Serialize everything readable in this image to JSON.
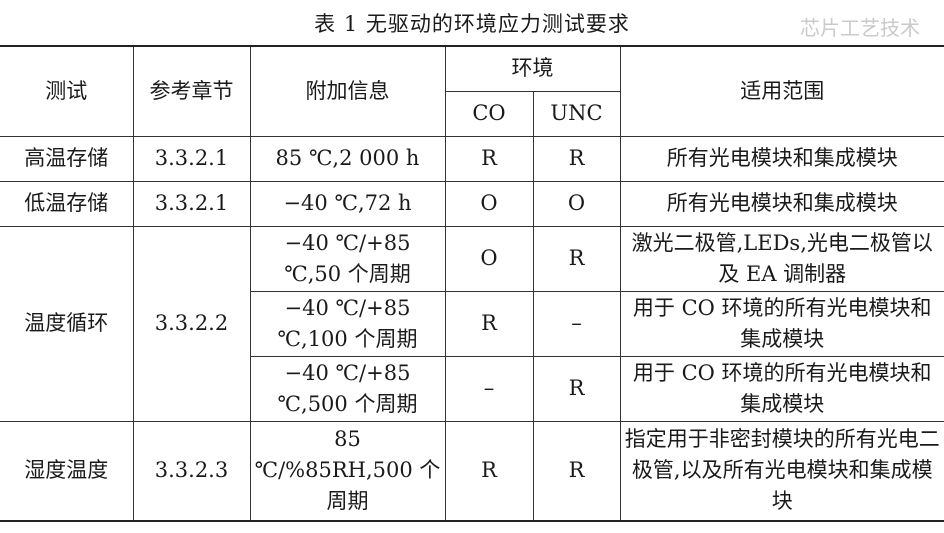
{
  "title": "表 1  无驱动的环境应力测试要求",
  "headers": {
    "test": "测试",
    "section": "参考章节",
    "info": "附加信息",
    "env": "环境",
    "co": "CO",
    "unc": "UNC",
    "scope": "适用范围"
  },
  "rows": [
    {
      "test": "高温存储",
      "section": "3.3.2.1",
      "info": "85 ℃,2 000 h",
      "co": "R",
      "unc": "R",
      "scope": "所有光电模块和集成模块"
    },
    {
      "test": "低温存储",
      "section": "3.3.2.1",
      "info": "−40 ℃,72 h",
      "co": "O",
      "unc": "O",
      "scope": "所有光电模块和集成模块"
    },
    {
      "test": "温度循环",
      "section": "3.3.2.2",
      "info": "−40 ℃/+85 ℃,50 个周期",
      "co": "O",
      "unc": "R",
      "scope": "激光二极管,LEDs,光电二极管以及 EA 调制器"
    },
    {
      "info": "−40 ℃/+85 ℃,100 个周期",
      "co": "R",
      "unc": "–",
      "scope": "用于 CO 环境的所有光电模块和集成模块"
    },
    {
      "info": "−40 ℃/+85 ℃,500 个周期",
      "co": "–",
      "unc": "R",
      "scope": "用于 CO 环境的所有光电模块和集成模块"
    },
    {
      "test": "湿度温度",
      "section": "3.3.2.3",
      "info": "85 ℃/%85RH,500 个周期",
      "co": "R",
      "unc": "R",
      "scope": "指定用于非密封模块的所有光电二极管,以及所有光电模块和集成模块"
    }
  ],
  "watermark": "芯片工艺技术"
}
